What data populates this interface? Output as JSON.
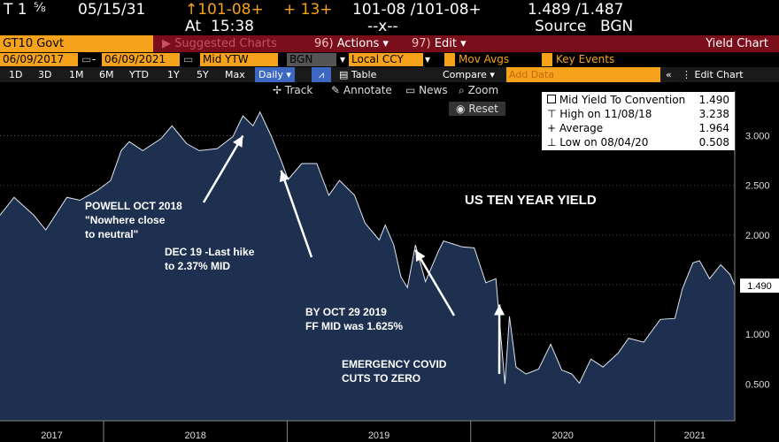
{
  "ticker": {
    "symbol": "T 1",
    "coupon_frac": "⅝",
    "maturity": "05/15/31",
    "price": "↑101-08+",
    "change": "+ 13+",
    "bid_ask": "101-08 /101-08+",
    "yield": "1.489 /1.487",
    "time_label": "At",
    "time": "15:38",
    "size": "--x--",
    "source_label": "Source",
    "source": "BGN"
  },
  "menu": {
    "security": "GT10 Govt",
    "suggested_charts": "Suggested Charts",
    "actions_num": "96)",
    "actions": "Actions",
    "edit_num": "97)",
    "edit": "Edit",
    "title": "Yield Chart"
  },
  "settings": {
    "start_date": "06/09/2017",
    "end_date": "06/09/2021",
    "field": "Mid YTW",
    "source": "BGN",
    "currency": "Local CCY",
    "mov_avgs": "Mov Avgs",
    "key_events": "Key Events"
  },
  "range": {
    "buttons": [
      "1D",
      "3D",
      "1M",
      "6M",
      "YTD",
      "1Y",
      "5Y",
      "Max"
    ],
    "period": "Daily",
    "table": "Table",
    "compare": "Compare",
    "add_data": "Add Data",
    "edit_chart": "Edit Chart"
  },
  "tools": {
    "track": "Track",
    "annotate": "Annotate",
    "news": "News",
    "zoom": "Zoom",
    "reset": "Reset"
  },
  "legend": {
    "rows": [
      {
        "label": "Mid Yield To Convention",
        "value": "1.490"
      },
      {
        "label": "High on 11/08/18",
        "value": "3.238"
      },
      {
        "label": "Average",
        "value": "1.964"
      },
      {
        "label": "Low on 08/04/20",
        "value": "0.508"
      }
    ]
  },
  "colors": {
    "area": "#1d3050",
    "orange": "#f7a21b",
    "menu": "#7a0e1b"
  },
  "chart_data": {
    "type": "area",
    "title": "US TEN YEAR YIELD",
    "ylim": [
      0.2,
      3.45
    ],
    "yticks": [
      0.5,
      1.0,
      1.5,
      2.0,
      2.5,
      3.0
    ],
    "ytick_labels": [
      "0.500",
      "1.000",
      "1.500",
      "2.000",
      "2.500",
      "3.000"
    ],
    "xlim": [
      "2017-06-09",
      "2021-06-09"
    ],
    "xtick_labels": [
      "2017",
      "2018",
      "2019",
      "2020",
      "2021"
    ],
    "last_value_label": "1.490",
    "grid": true,
    "series": [
      {
        "x": [
          "2017-06-09",
          "2017-07-07",
          "2017-08-15",
          "2017-09-08",
          "2017-10-20",
          "2017-11-15",
          "2017-12-20",
          "2018-01-15",
          "2018-02-05",
          "2018-02-21",
          "2018-03-20",
          "2018-04-25",
          "2018-05-17",
          "2018-06-15",
          "2018-07-10",
          "2018-08-15",
          "2018-09-15",
          "2018-10-05",
          "2018-10-25",
          "2018-11-08",
          "2018-11-30",
          "2018-12-20",
          "2019-01-03",
          "2019-01-30",
          "2019-03-01",
          "2019-03-25",
          "2019-04-15",
          "2019-05-15",
          "2019-06-05",
          "2019-07-03",
          "2019-07-15",
          "2019-08-01",
          "2019-08-15",
          "2019-08-28",
          "2019-09-13",
          "2019-10-03",
          "2019-10-29",
          "2019-11-08",
          "2019-12-15",
          "2020-01-08",
          "2020-01-31",
          "2020-02-20",
          "2020-03-09",
          "2020-03-18",
          "2020-03-31",
          "2020-04-20",
          "2020-05-15",
          "2020-06-08",
          "2020-06-30",
          "2020-07-20",
          "2020-08-04",
          "2020-08-27",
          "2020-09-20",
          "2020-10-20",
          "2020-11-10",
          "2020-12-10",
          "2021-01-12",
          "2021-02-10",
          "2021-02-25",
          "2021-03-18",
          "2021-03-31",
          "2021-04-20",
          "2021-05-12",
          "2021-05-31",
          "2021-06-09"
        ],
        "y": [
          2.2,
          2.38,
          2.2,
          2.05,
          2.38,
          2.35,
          2.45,
          2.55,
          2.85,
          2.94,
          2.85,
          2.97,
          3.1,
          2.92,
          2.85,
          2.87,
          2.99,
          3.2,
          3.1,
          3.238,
          3.0,
          2.75,
          2.56,
          2.72,
          2.72,
          2.4,
          2.55,
          2.4,
          2.12,
          1.95,
          2.1,
          1.9,
          1.58,
          1.47,
          1.9,
          1.53,
          1.84,
          1.94,
          1.88,
          1.87,
          1.52,
          1.56,
          0.5,
          1.18,
          0.67,
          0.6,
          0.65,
          0.9,
          0.64,
          0.6,
          0.508,
          0.75,
          0.67,
          0.81,
          0.96,
          0.92,
          1.15,
          1.16,
          1.46,
          1.72,
          1.74,
          1.56,
          1.7,
          1.6,
          1.49
        ]
      }
    ],
    "annotations": [
      {
        "text": [
          "POWELL OCT 2018",
          "\"Nowhere close",
          "to neutral\""
        ],
        "target_x": "2018-10-05",
        "target_y": 3.0
      },
      {
        "text": [
          "DEC 19 -Last hike",
          "to 2.37%  MID"
        ],
        "target_x": "2018-12-20",
        "target_y": 2.65
      },
      {
        "text": [
          "BY OCT 29 2019",
          "FF MID was 1.625%"
        ],
        "target_x": "2019-09-13",
        "target_y": 1.85
      },
      {
        "text": [
          "EMERGENCY COVID",
          "CUTS TO ZERO"
        ],
        "target_x": "2020-02-27",
        "target_y": 1.3
      }
    ]
  }
}
